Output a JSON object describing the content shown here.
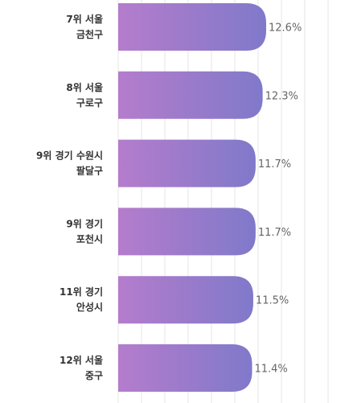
{
  "chart_data": {
    "type": "bar",
    "orientation": "horizontal",
    "categories": [
      [
        "7위 서울",
        "금천구"
      ],
      [
        "8위 서울",
        "구로구"
      ],
      [
        "9위 경기 수원시",
        "팔달구"
      ],
      [
        "9위 경기",
        "포천시"
      ],
      [
        "11위 경기",
        "안성시"
      ],
      [
        "12위 서울",
        "중구"
      ]
    ],
    "values": [
      12.6,
      12.3,
      11.7,
      11.7,
      11.5,
      11.4
    ],
    "value_labels": [
      "12.6%",
      "12.3%",
      "11.7%",
      "11.7%",
      "11.5%",
      "11.4%"
    ],
    "unit": "%",
    "xlim": [
      0,
      12.6
    ],
    "grid": true,
    "colors": {
      "bar_start": "#b57ccc",
      "bar_end": "#8079ca",
      "grid": "#e6e6e6",
      "label": "#333333",
      "value": "#666666"
    }
  }
}
